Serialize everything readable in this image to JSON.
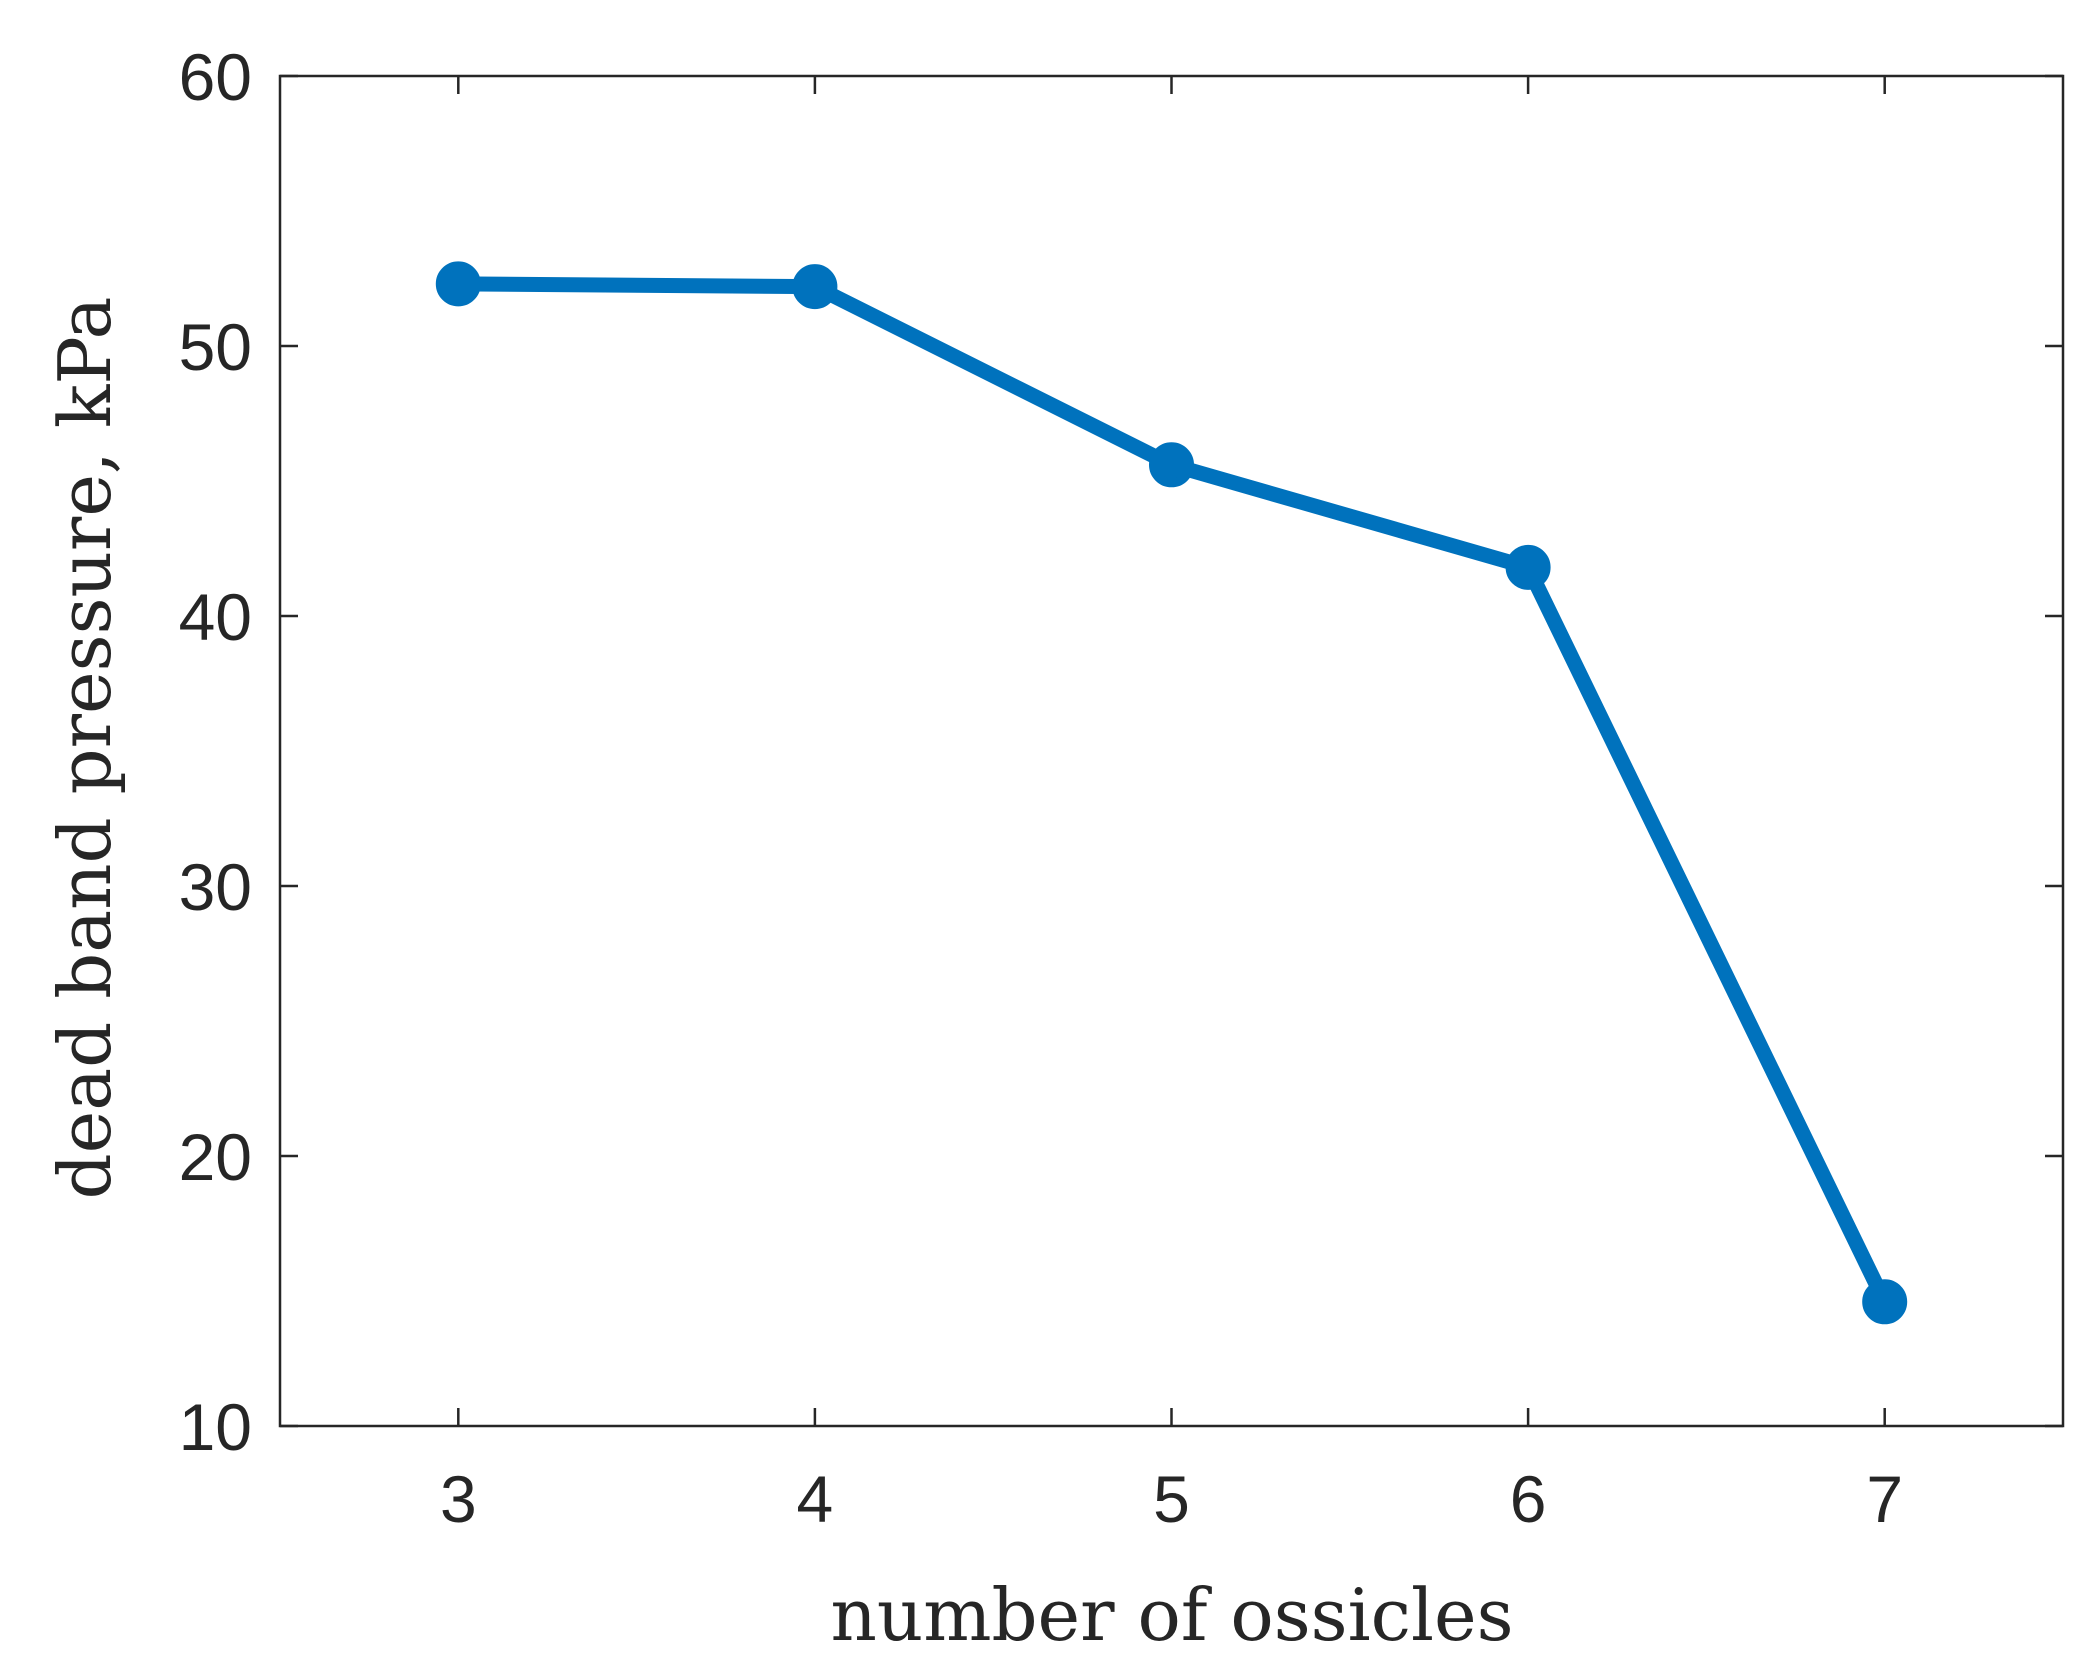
{
  "chart_data": {
    "type": "line",
    "xlabel": "number of ossicles",
    "ylabel": "dead band pressure, kPa",
    "xlim": [
      2.5,
      7.5
    ],
    "ylim": [
      10,
      60
    ],
    "xticks": [
      3,
      4,
      5,
      6,
      7
    ],
    "yticks": [
      10,
      20,
      30,
      40,
      50,
      60
    ],
    "grid": false,
    "line_color": "#0072BD",
    "axis_color": "#262626",
    "marker": "circle",
    "x": [
      3,
      4,
      5,
      6,
      7
    ],
    "y": [
      52.3,
      52.2,
      45.6,
      41.8,
      14.6
    ]
  }
}
